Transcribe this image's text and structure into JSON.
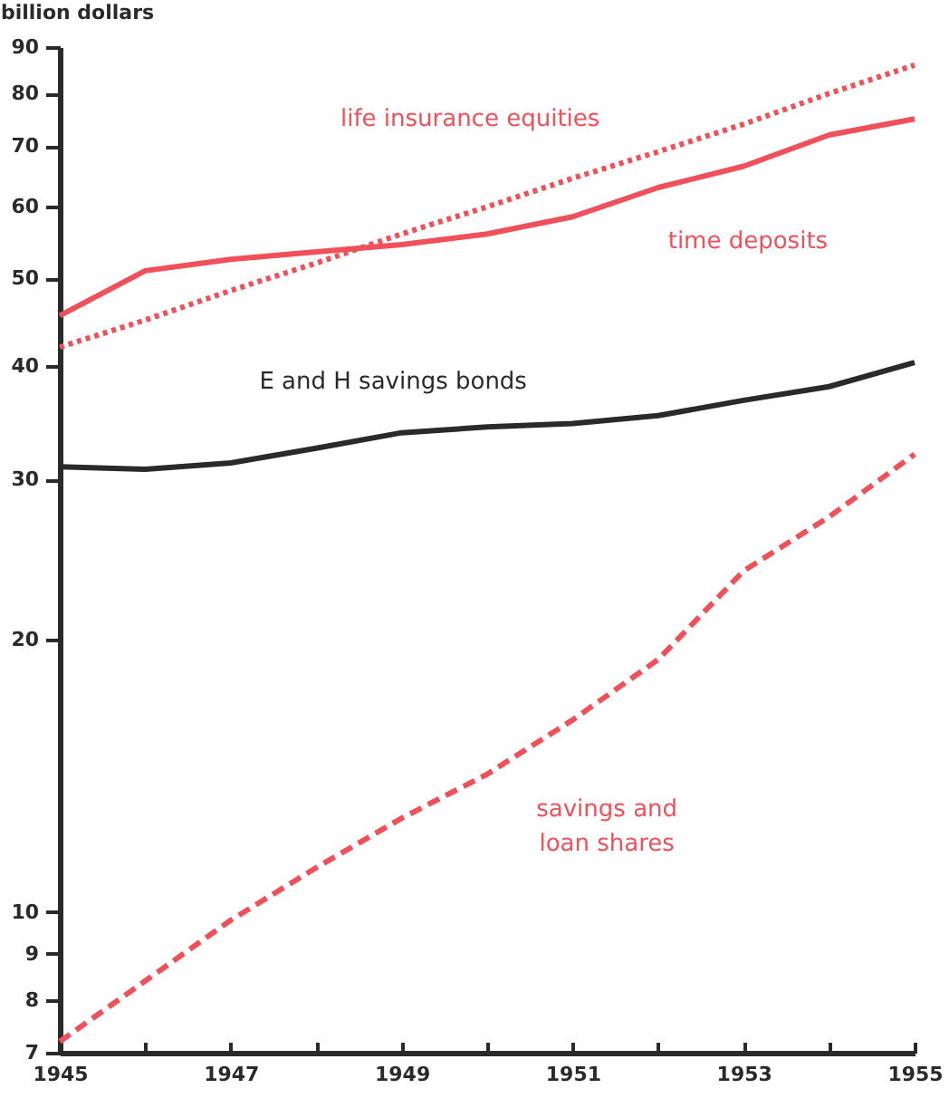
{
  "chart_data": {
    "type": "line",
    "ylabel": "billion dollars",
    "log": "y",
    "grid": false,
    "legend": false,
    "marker": "none",
    "x": [
      1945,
      1946,
      1947,
      1948,
      1949,
      1950,
      1951,
      1952,
      1953,
      1954,
      1955
    ],
    "xlim": [
      1945,
      1955
    ],
    "xticks": [
      1945,
      {
        "value": 1946,
        "label": null
      },
      1947,
      {
        "value": 1948,
        "label": null
      },
      1949,
      {
        "value": 1950,
        "label": null
      },
      1951,
      {
        "value": 1952,
        "label": null
      },
      1953,
      {
        "value": 1954,
        "label": null
      },
      1955
    ],
    "ylim": [
      7,
      90
    ],
    "yticks": [
      7,
      8,
      9,
      10,
      20,
      30,
      40,
      50,
      60,
      70,
      80,
      90
    ],
    "series": [
      {
        "name": "life insurance equities",
        "color": "#f0505a",
        "line_style": "dotted",
        "values": [
          42,
          45,
          48.5,
          52,
          56,
          60,
          64.5,
          69,
          74,
          80,
          86
        ]
      },
      {
        "name": "time deposits",
        "color": "#f0505a",
        "line_style": "solid",
        "values": [
          45.5,
          51,
          52.5,
          53.5,
          54.5,
          56,
          58.5,
          63,
          66.5,
          72,
          75
        ]
      },
      {
        "name": "E and H savings bonds",
        "color": "#2a2a2a",
        "line_style": "solid",
        "values": [
          31,
          30.8,
          31.3,
          32.5,
          33.8,
          34.3,
          34.6,
          35.3,
          36.7,
          38,
          40.4
        ]
      },
      {
        "name": "savings and\nloan shares",
        "color": "#f0505a",
        "line_style": "dashed",
        "values": [
          7.2,
          8.4,
          9.8,
          11.2,
          12.7,
          14.2,
          16.3,
          19,
          23.8,
          27.3,
          32
        ]
      }
    ]
  }
}
